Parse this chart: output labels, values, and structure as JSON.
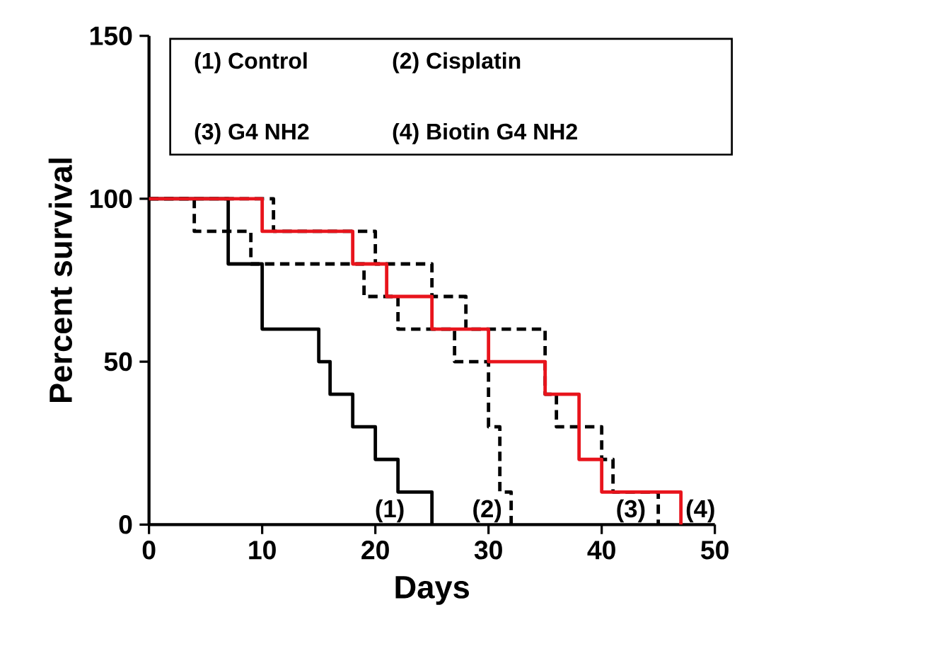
{
  "chart_data": {
    "type": "step",
    "xlabel": "Days",
    "ylabel": "Percent survival",
    "xlim": [
      0,
      50
    ],
    "ylim": [
      0,
      150
    ],
    "xticks": [
      0,
      10,
      20,
      30,
      40,
      50
    ],
    "yticks": [
      0,
      50,
      100,
      150
    ],
    "series": [
      {
        "color": "#000000",
        "line_style": "solid",
        "x": [
          0,
          7,
          10,
          15,
          16,
          18,
          20,
          22,
          25
        ],
        "values": [
          100,
          80,
          60,
          50,
          40,
          30,
          20,
          10,
          0
        ]
      },
      {
        "color": "#000000",
        "line_style": "dashed",
        "x": [
          0,
          4,
          9,
          19,
          22,
          27,
          30,
          31,
          32
        ],
        "values": [
          100,
          90,
          80,
          70,
          60,
          50,
          30,
          10,
          0
        ]
      },
      {
        "color": "#000000",
        "line_style": "dashed",
        "x": [
          0,
          11,
          20,
          25,
          28,
          35,
          36,
          40,
          41,
          45
        ],
        "values": [
          100,
          90,
          80,
          70,
          60,
          40,
          30,
          20,
          10,
          0
        ]
      },
      {
        "color": "#e8141c",
        "line_style": "solid",
        "x": [
          0,
          10,
          18,
          21,
          25,
          30,
          35,
          38,
          40,
          47
        ],
        "values": [
          100,
          90,
          80,
          70,
          60,
          50,
          40,
          20,
          10,
          0
        ]
      }
    ],
    "annotations": [
      "(1) Control",
      "(2) Cisplatin",
      "(3) G4 NH2",
      "(4) Biotin G4 NH2",
      "(1)",
      "(2)",
      "(3)",
      "(4)"
    ]
  }
}
